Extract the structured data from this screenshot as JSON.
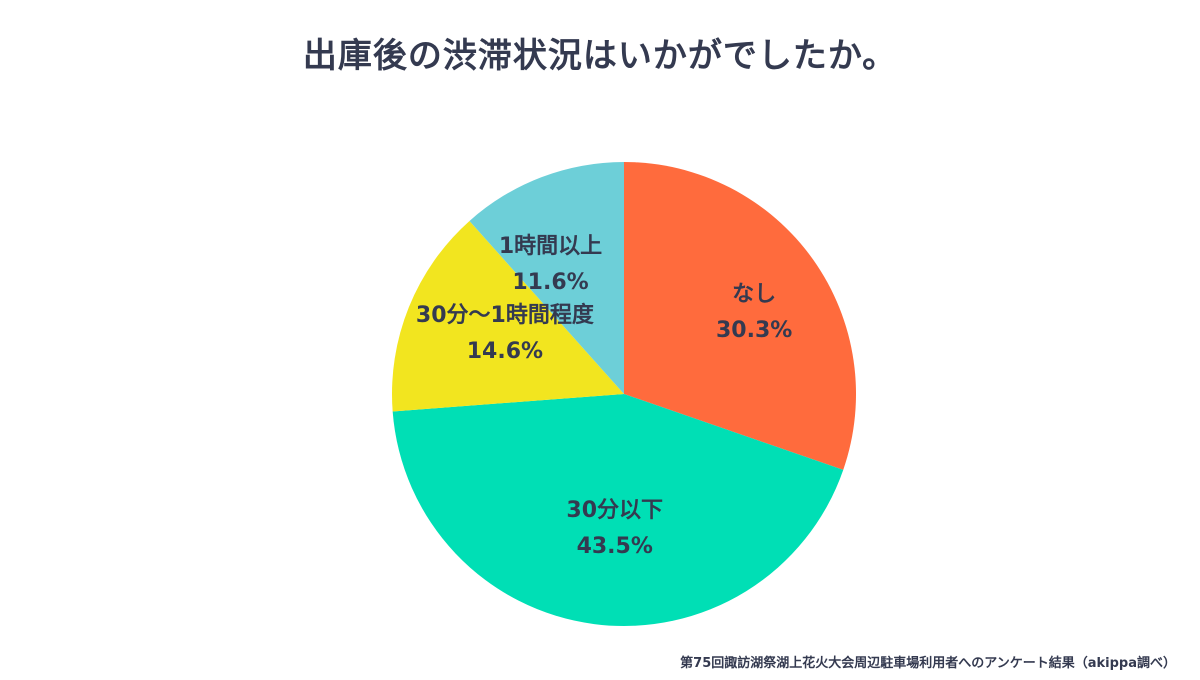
{
  "chart_data": {
    "type": "pie",
    "title": "出庫後の渋滞状況はいかがでしたか。",
    "slices": [
      {
        "label": "なし",
        "value": 30.3,
        "value_label": "30.3%",
        "color": "#ff6b3d"
      },
      {
        "label": "30分以下",
        "value": 43.5,
        "value_label": "43.5%",
        "color": "#00dfb5"
      },
      {
        "label": "30分〜1時間程度",
        "value": 14.6,
        "value_label": "14.6%",
        "color": "#f2e51f"
      },
      {
        "label": "1時間以上",
        "value": 11.6,
        "value_label": "11.6%",
        "color": "#6dcfd8"
      }
    ],
    "start": "12 o'clock",
    "direction": "clockwise",
    "legend": "none",
    "source_note": "第75回諏訪湖祭湖上花火大会周辺駐車場利用者へのアンケート結果（akippa調べ）"
  }
}
